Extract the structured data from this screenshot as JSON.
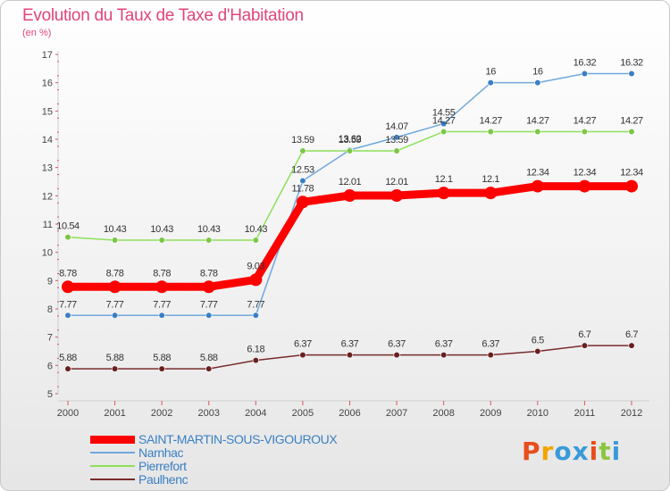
{
  "header": {
    "title": "Evolution du Taux de Taxe d'Habitation",
    "subtitle": "(en %)"
  },
  "brand": {
    "letters": [
      "P",
      "r",
      "o",
      "x",
      "i",
      "t",
      "i"
    ],
    "colors": [
      "#e84e1b",
      "#f2a400",
      "#3a9ad9",
      "#3a9ad9",
      "#e84e1b",
      "#8cc63f",
      "#3a9ad9"
    ]
  },
  "chart_data": {
    "type": "line",
    "title": "Evolution du Taux de Taxe d'Habitation",
    "ylabel": "(en %)",
    "xlabel": "",
    "x": [
      "2000",
      "2001",
      "2002",
      "2003",
      "2004",
      "2005",
      "2006",
      "2007",
      "2008",
      "2009",
      "2010",
      "2011",
      "2012"
    ],
    "ylim": [
      5,
      17
    ],
    "yticks": [
      5,
      6,
      7,
      8,
      9,
      10,
      11,
      12,
      13,
      14,
      15,
      16,
      17
    ],
    "grid": false,
    "legend_position": "bottom-left",
    "series": [
      {
        "name": "SAINT-MARTIN-SOUS-VIGOUROUX",
        "color": "#ff0000",
        "highlight": true,
        "values": [
          8.78,
          8.78,
          8.78,
          8.78,
          9.03,
          11.78,
          12.01,
          12.01,
          12.1,
          12.1,
          12.34,
          12.34,
          12.34
        ],
        "labels": [
          "8.78",
          "8.78",
          "8.78",
          "8.78",
          "9.03",
          "11.78",
          "12.01",
          "12.01",
          "12.1",
          "12.1",
          "12.34",
          "12.34",
          "12.34"
        ]
      },
      {
        "name": "Narnhac",
        "color": "#6fa8dc",
        "marker": "#3a7fc4",
        "values": [
          7.77,
          7.77,
          7.77,
          7.77,
          7.77,
          12.53,
          13.62,
          14.07,
          14.55,
          16,
          16,
          16.32,
          16.32
        ],
        "labels": [
          "7.77",
          "7.77",
          "7.77",
          "7.77",
          "7.77",
          "12.53",
          "13.62",
          "14.07",
          "14.55",
          "16",
          "16",
          "16.32",
          "16.32"
        ]
      },
      {
        "name": "Pierrefort",
        "color": "#8ee05a",
        "marker": "#7cc646",
        "values": [
          10.54,
          10.43,
          10.43,
          10.43,
          10.43,
          13.59,
          13.59,
          13.59,
          14.27,
          14.27,
          14.27,
          14.27,
          14.27
        ],
        "labels": [
          "10.54",
          "10.43",
          "10.43",
          "10.43",
          "10.43",
          "13.59",
          "13.59",
          "13.59",
          "14.27",
          "14.27",
          "14.27",
          "14.27",
          "14.27"
        ]
      },
      {
        "name": "Paulhenc",
        "color": "#7a2b2b",
        "marker": "#6a2020",
        "values": [
          5.88,
          5.88,
          5.88,
          5.88,
          6.18,
          6.37,
          6.37,
          6.37,
          6.37,
          6.37,
          6.5,
          6.7,
          6.7
        ],
        "labels": [
          "5.88",
          "5.88",
          "5.88",
          "5.88",
          "6.18",
          "6.37",
          "6.37",
          "6.37",
          "6.37",
          "6.37",
          "6.5",
          "6.7",
          "6.7"
        ]
      }
    ]
  }
}
